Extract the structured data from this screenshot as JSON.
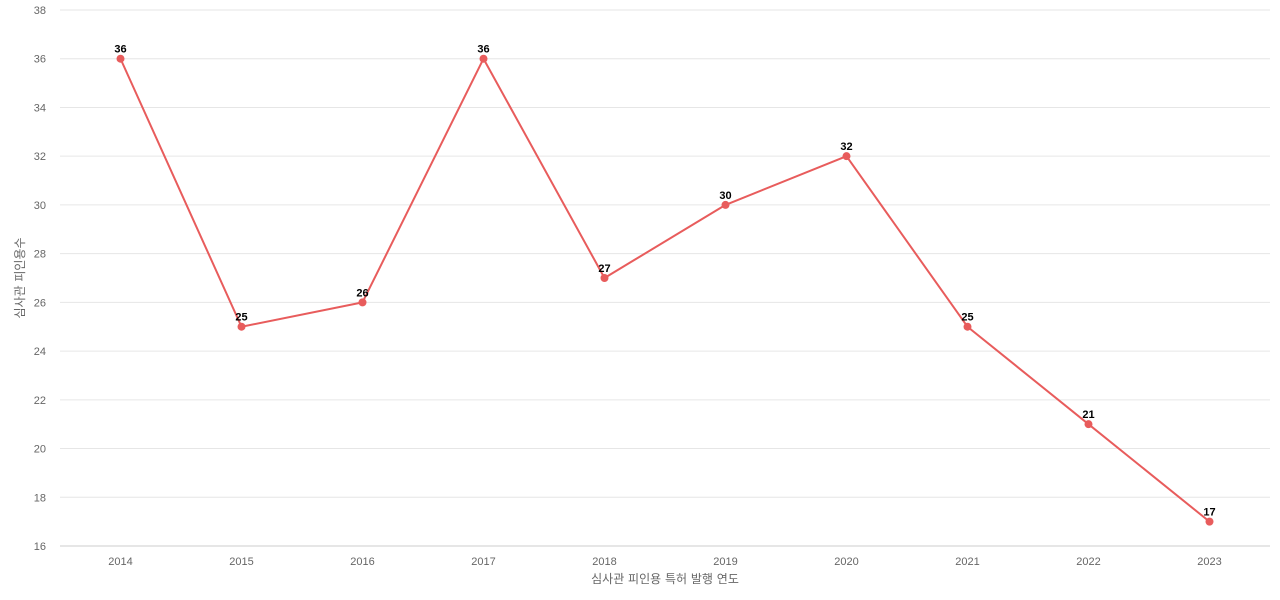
{
  "chart_data": {
    "type": "line",
    "title": "",
    "xlabel": "심사관 피인용 특허 발행 연도",
    "ylabel": "심사관 피인용수",
    "categories": [
      "2014",
      "2015",
      "2016",
      "2017",
      "2018",
      "2019",
      "2020",
      "2021",
      "2022",
      "2023"
    ],
    "series": [
      {
        "values": [
          36,
          25,
          26,
          36,
          27,
          30,
          32,
          25,
          21,
          17
        ]
      }
    ],
    "ylim": [
      16,
      38
    ],
    "yticks": [
      16,
      18,
      20,
      22,
      24,
      26,
      28,
      30,
      32,
      34,
      36,
      38
    ],
    "grid": true,
    "data_labels": true,
    "colors": {
      "line": "#e85c5c",
      "grid": "#e6e6e6",
      "axis": "#cccccc"
    }
  }
}
